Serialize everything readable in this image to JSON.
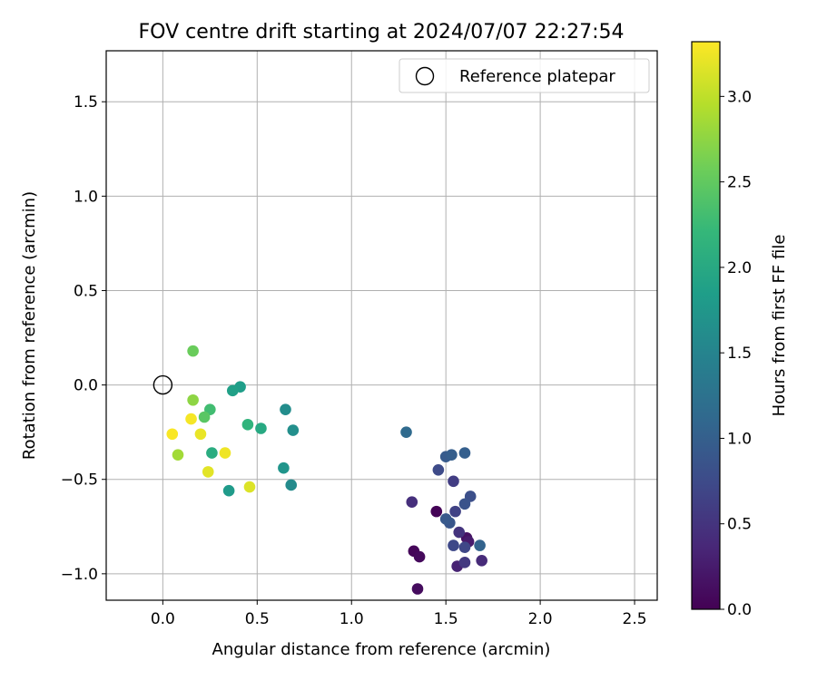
{
  "chart_data": {
    "type": "scatter",
    "title": "FOV centre drift starting at 2024/07/07 22:27:54",
    "xlabel": "Angular distance from reference (arcmin)",
    "ylabel": "Rotation from reference (arcmin)",
    "xlim": [
      -0.3,
      2.62
    ],
    "ylim": [
      -1.14,
      1.77
    ],
    "xticks": [
      0.0,
      0.5,
      1.0,
      1.5,
      2.0,
      2.5
    ],
    "yticks": [
      -1.0,
      -0.5,
      0.0,
      0.5,
      1.0,
      1.5
    ],
    "grid": true,
    "legend": {
      "placement": "top-right",
      "entries": [
        "Reference platepar"
      ]
    },
    "reference_point": {
      "label": "Reference platepar",
      "x": 0.0,
      "y": 0.0
    },
    "colorbar": {
      "label": "Hours from first FF file",
      "colormap": "viridis",
      "range": [
        0.0,
        3.32
      ],
      "ticks": [
        0.0,
        0.5,
        1.0,
        1.5,
        2.0,
        2.5,
        3.0
      ]
    },
    "points": [
      {
        "x": 1.45,
        "y": -0.67,
        "c": 0.02
      },
      {
        "x": 1.33,
        "y": -0.88,
        "c": 0.05
      },
      {
        "x": 1.36,
        "y": -0.91,
        "c": 0.08
      },
      {
        "x": 1.35,
        "y": -1.08,
        "c": 0.1
      },
      {
        "x": 1.61,
        "y": -0.81,
        "c": 0.15
      },
      {
        "x": 1.62,
        "y": -0.83,
        "c": 0.25
      },
      {
        "x": 1.56,
        "y": -0.96,
        "c": 0.32
      },
      {
        "x": 1.69,
        "y": -0.93,
        "c": 0.4
      },
      {
        "x": 1.32,
        "y": -0.62,
        "c": 0.45
      },
      {
        "x": 1.57,
        "y": -0.78,
        "c": 0.5
      },
      {
        "x": 1.6,
        "y": -0.94,
        "c": 0.55
      },
      {
        "x": 1.54,
        "y": -0.51,
        "c": 0.6
      },
      {
        "x": 1.55,
        "y": -0.67,
        "c": 0.65
      },
      {
        "x": 1.6,
        "y": -0.86,
        "c": 0.7
      },
      {
        "x": 1.54,
        "y": -0.85,
        "c": 0.72
      },
      {
        "x": 1.46,
        "y": -0.45,
        "c": 0.75
      },
      {
        "x": 1.63,
        "y": -0.59,
        "c": 0.8
      },
      {
        "x": 1.6,
        "y": -0.63,
        "c": 0.85
      },
      {
        "x": 1.52,
        "y": -0.73,
        "c": 0.88
      },
      {
        "x": 1.5,
        "y": -0.71,
        "c": 0.92
      },
      {
        "x": 1.5,
        "y": -0.38,
        "c": 0.95
      },
      {
        "x": 1.53,
        "y": -0.37,
        "c": 0.98
      },
      {
        "x": 1.6,
        "y": -0.36,
        "c": 1.0
      },
      {
        "x": 1.68,
        "y": -0.85,
        "c": 1.05
      },
      {
        "x": 1.29,
        "y": -0.25,
        "c": 1.15
      },
      {
        "x": 0.68,
        "y": -0.53,
        "c": 1.6
      },
      {
        "x": 0.65,
        "y": -0.13,
        "c": 1.62
      },
      {
        "x": 0.69,
        "y": -0.24,
        "c": 1.65
      },
      {
        "x": 0.64,
        "y": -0.44,
        "c": 1.72
      },
      {
        "x": 0.35,
        "y": -0.56,
        "c": 1.8
      },
      {
        "x": 0.41,
        "y": -0.01,
        "c": 1.85
      },
      {
        "x": 0.37,
        "y": -0.03,
        "c": 1.88
      },
      {
        "x": 0.52,
        "y": -0.23,
        "c": 2.0
      },
      {
        "x": 0.26,
        "y": -0.36,
        "c": 2.05
      },
      {
        "x": 0.45,
        "y": -0.21,
        "c": 2.15
      },
      {
        "x": 0.25,
        "y": -0.13,
        "c": 2.3
      },
      {
        "x": 0.22,
        "y": -0.17,
        "c": 2.45
      },
      {
        "x": 0.16,
        "y": 0.18,
        "c": 2.55
      },
      {
        "x": 0.16,
        "y": -0.08,
        "c": 2.75
      },
      {
        "x": 0.08,
        "y": -0.37,
        "c": 2.85
      },
      {
        "x": 0.46,
        "y": -0.54,
        "c": 3.15
      },
      {
        "x": 0.24,
        "y": -0.46,
        "c": 3.18
      },
      {
        "x": 0.2,
        "y": -0.26,
        "c": 3.22
      },
      {
        "x": 0.33,
        "y": -0.36,
        "c": 3.25
      },
      {
        "x": 0.15,
        "y": -0.18,
        "c": 3.28
      },
      {
        "x": 0.05,
        "y": -0.26,
        "c": 3.3
      }
    ]
  }
}
